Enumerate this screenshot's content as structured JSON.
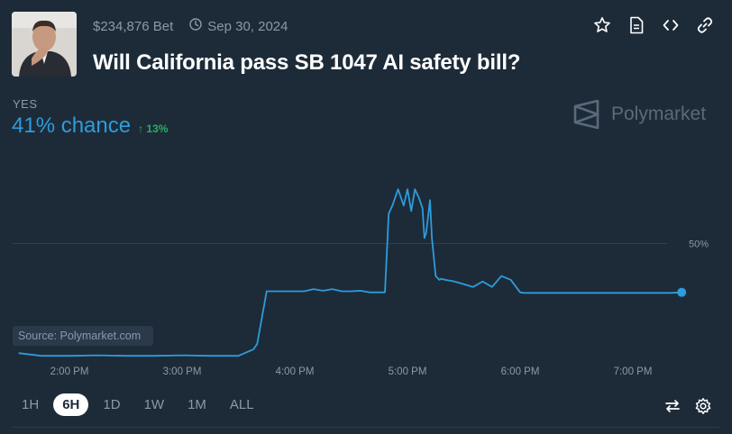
{
  "header": {
    "volume": "$234,876 Bet",
    "end_date": "Sep 30, 2024",
    "title": "Will California pass SB 1047 AI safety bill?"
  },
  "outcome": {
    "label": "YES",
    "chance": "41% chance",
    "change": "↑ 13%"
  },
  "brand": "Polymarket",
  "icons": [
    "clock-icon",
    "star-icon",
    "document-icon",
    "embed-code-icon",
    "link-icon",
    "swap-icon",
    "gear-icon"
  ],
  "timeframes": {
    "items": [
      "1H",
      "6H",
      "1D",
      "1W",
      "1M",
      "ALL"
    ],
    "active": "6H"
  },
  "colors": {
    "line": "#2d9cdb",
    "up": "#27ae60",
    "background": "#1d2b39"
  },
  "chart_data": {
    "type": "line",
    "x_tick_labels": [
      "2:00 PM",
      "3:00 PM",
      "4:00 PM",
      "5:00 PM",
      "6:00 PM",
      "7:00 PM"
    ],
    "y_reference_label": "50%",
    "y_reference": 50,
    "ylim": [
      28,
      68
    ],
    "source": "Source: Polymarket.com",
    "series": [
      {
        "x": [
          "13:33",
          "13:45",
          "14:00",
          "14:15",
          "14:30",
          "14:45",
          "15:00",
          "15:15",
          "15:30",
          "15:38",
          "15:40",
          "15:45",
          "15:52",
          "16:00",
          "16:05",
          "16:10",
          "16:15",
          "16:20",
          "16:25",
          "16:30",
          "16:35",
          "16:40",
          "16:45",
          "16:48",
          "16:50",
          "16:52",
          "16:55",
          "16:58",
          "17:00",
          "17:02",
          "17:04",
          "17:06",
          "17:08",
          "17:09",
          "17:10",
          "17:12",
          "17:13",
          "17:15",
          "17:17",
          "17:18",
          "17:20",
          "17:25",
          "17:30",
          "17:35",
          "17:40",
          "17:45",
          "17:50",
          "17:55",
          "18:00",
          "18:02",
          "18:05",
          "18:10",
          "18:20",
          "18:30",
          "18:40",
          "18:50",
          "19:00",
          "19:10",
          "19:20",
          "19:26"
        ],
        "y": [
          29.8,
          29.3,
          29.3,
          29.4,
          29.3,
          29.3,
          29.4,
          29.3,
          29.3,
          30.5,
          31.5,
          41.2,
          41.2,
          41.2,
          41.2,
          41.6,
          41.3,
          41.6,
          41.2,
          41.2,
          41.3,
          41.0,
          41.0,
          41.0,
          55.5,
          57.0,
          60.0,
          57.0,
          60.0,
          56.0,
          60.0,
          58.5,
          56.5,
          51.0,
          52.0,
          58.0,
          51.0,
          44.0,
          43.3,
          43.5,
          43.3,
          43.0,
          42.5,
          42.0,
          43.0,
          42.0,
          44.0,
          43.3,
          41.0,
          40.9,
          40.9,
          40.9,
          40.9,
          40.9,
          40.9,
          40.9,
          40.9,
          40.9,
          40.9,
          41.0
        ]
      }
    ]
  }
}
